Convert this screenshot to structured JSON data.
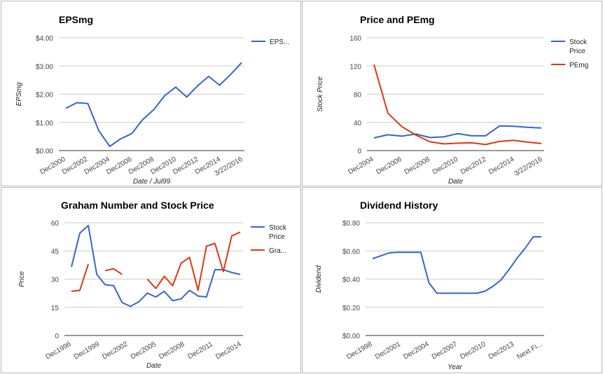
{
  "chart_data": [
    {
      "type": "line",
      "title": "EPSmg",
      "xlabel": "Date / Jul99",
      "ylabel": "EPSmg",
      "ylim": [
        0,
        4
      ],
      "yticks": [
        "$0.00",
        "$1.00",
        "$2.00",
        "$3.00",
        "$4.00"
      ],
      "xticks": [
        "Dec2000",
        "Dec2002",
        "Dec2004",
        "Dec2006",
        "Dec2008",
        "Dec2010",
        "Dec2012",
        "Dec2014",
        "3/22/2016"
      ],
      "grid": true,
      "legend": "right",
      "series": [
        {
          "name": "EPS...",
          "color": "#3366cc",
          "values": [
            1.5,
            1.7,
            1.67,
            0.7,
            0.15,
            0.42,
            0.6,
            1.1,
            1.45,
            1.95,
            2.25,
            1.9,
            2.3,
            2.63,
            2.32,
            2.7,
            3.12
          ]
        }
      ]
    },
    {
      "type": "line",
      "title": "Price and PEmg",
      "xlabel": "Date",
      "ylabel": "Stock Price",
      "ylim": [
        0,
        160
      ],
      "yticks": [
        "0",
        "40",
        "80",
        "120",
        "160"
      ],
      "xticks": [
        "Dec2004",
        "Dec2006",
        "Dec2008",
        "Dec2010",
        "Dec2012",
        "Dec2014",
        "3/22/2016"
      ],
      "grid": true,
      "legend": "right",
      "series": [
        {
          "name": "Stock Price",
          "color": "#3366cc",
          "values": [
            18,
            22.5,
            20.5,
            23.5,
            18.5,
            19.5,
            24,
            21,
            21,
            35,
            34.5,
            33,
            32
          ]
        },
        {
          "name": "PEmg",
          "color": "#dc3912",
          "values": [
            122,
            53,
            34,
            22,
            12.5,
            9.5,
            10.5,
            11,
            8.5,
            13,
            14.5,
            12,
            10
          ]
        }
      ]
    },
    {
      "type": "line",
      "title": "Graham Number and Stock Price",
      "xlabel": "Date",
      "ylabel": "Price",
      "ylim": [
        0,
        60
      ],
      "yticks": [
        "0",
        "15",
        "30",
        "45",
        "60"
      ],
      "xticks": [
        "Dec1996",
        "Dec1999",
        "Dec2002",
        "Dec2005",
        "Dec2008",
        "Dec2011",
        "Dec2014"
      ],
      "grid": true,
      "legend": "right",
      "series": [
        {
          "name": "Stock Price",
          "color": "#3366cc",
          "values": [
            36.5,
            54.5,
            58.5,
            32.5,
            27,
            26.5,
            17.5,
            15.5,
            18,
            22.5,
            20.5,
            23.5,
            18.5,
            19.5,
            24,
            21,
            20.5,
            35,
            35,
            33.5,
            32.5
          ]
        },
        {
          "name": "Gra...",
          "color": "#dc3912",
          "values": [
            23.5,
            24,
            38,
            null,
            34.5,
            35.5,
            32.5,
            null,
            null,
            30,
            25,
            31.5,
            26.5,
            38.5,
            41.5,
            24,
            47.5,
            49,
            34,
            53,
            55
          ]
        }
      ]
    },
    {
      "type": "line",
      "title": "Dividend History",
      "xlabel": "Year",
      "ylabel": "Dividend",
      "ylim": [
        0,
        0.8
      ],
      "yticks": [
        "$0.00",
        "$0.20",
        "$0.40",
        "$0.60",
        "$0.80"
      ],
      "xticks": [
        "Dec1998",
        "Dec2001",
        "Dec2004",
        "Dec2007",
        "Dec2010",
        "Dec2013",
        "Next Fi..."
      ],
      "grid": true,
      "legend": "none",
      "series": [
        {
          "name": "",
          "color": "#3366cc",
          "values": [
            0.545,
            0.565,
            0.585,
            0.59,
            0.59,
            0.59,
            0.59,
            0.375,
            0.3,
            0.3,
            0.3,
            0.3,
            0.3,
            0.3,
            0.315,
            0.35,
            0.395,
            0.47,
            0.55,
            0.62,
            0.7,
            0.7
          ]
        }
      ]
    }
  ]
}
